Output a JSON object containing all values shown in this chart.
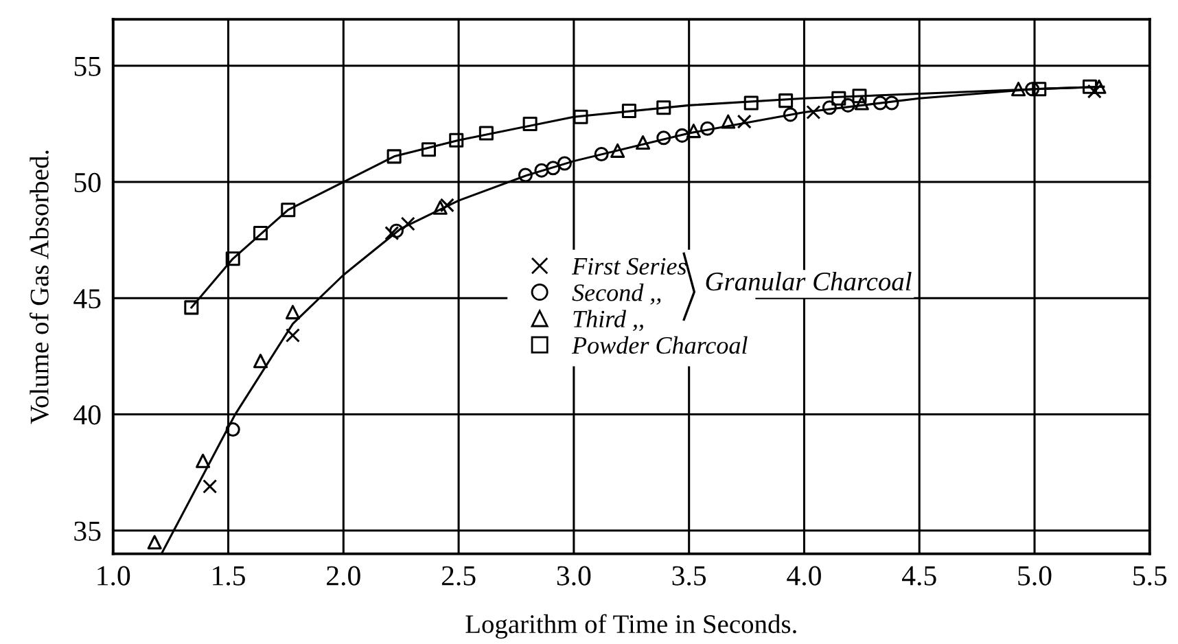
{
  "chart_data": {
    "type": "scatter",
    "xlabel": "Logarithm of Time in Seconds.",
    "ylabel": "Volume of Gas Absorbed.",
    "xlim": [
      1.0,
      5.5
    ],
    "ylim": [
      34,
      57
    ],
    "xticks": [
      {
        "value": 1.0,
        "label": "1.0"
      },
      1.5,
      {
        "value": 2.0,
        "label": "2.0"
      },
      2.5,
      {
        "value": 3.0,
        "label": "3.0"
      },
      3.5,
      {
        "value": 4.0,
        "label": "4.0"
      },
      4.5,
      {
        "value": 5.0,
        "label": "5.0"
      },
      5.5
    ],
    "yticks": [
      35,
      40,
      45,
      50,
      55
    ],
    "grid": true,
    "legend": "center",
    "annotations": [
      "Granular Charcoal"
    ],
    "series": [
      {
        "name": "First Series",
        "color": "#000000",
        "marker": "cross",
        "x": [
          1.42,
          1.78,
          2.21,
          2.28,
          2.45,
          3.74,
          4.04,
          5.26
        ],
        "values": [
          36.9,
          43.4,
          47.8,
          48.2,
          49.0,
          52.6,
          53.0,
          53.9
        ]
      },
      {
        "name": "Second ,,",
        "color": "#000000",
        "marker": "circle",
        "x": [
          1.52,
          2.23,
          2.79,
          2.86,
          2.91,
          2.96,
          3.12,
          3.39,
          3.47,
          3.58,
          3.94,
          4.11,
          4.19,
          4.33,
          4.38,
          4.99
        ],
        "values": [
          39.35,
          47.9,
          50.3,
          50.5,
          50.6,
          50.8,
          51.2,
          51.9,
          52.0,
          52.3,
          52.9,
          53.2,
          53.3,
          53.4,
          53.4,
          54.0
        ]
      },
      {
        "name": "Third ,,",
        "color": "#000000",
        "marker": "triangle",
        "x": [
          1.18,
          1.39,
          1.64,
          1.78,
          2.42,
          3.19,
          3.3,
          3.52,
          3.67,
          4.25,
          4.93,
          5.28
        ],
        "values": [
          34.5,
          38.0,
          42.3,
          44.4,
          48.9,
          51.35,
          51.7,
          52.2,
          52.6,
          53.4,
          54.0,
          54.1
        ]
      },
      {
        "name": "Powder Charcoal",
        "color": "#000000",
        "marker": "square",
        "x": [
          1.34,
          1.52,
          1.64,
          1.76,
          2.22,
          2.37,
          2.49,
          2.62,
          2.81,
          3.03,
          3.24,
          3.39,
          3.77,
          3.92,
          4.15,
          4.24,
          5.02,
          5.24
        ],
        "values": [
          44.6,
          46.7,
          47.8,
          48.8,
          51.1,
          51.4,
          51.8,
          52.1,
          52.5,
          52.8,
          53.06,
          53.2,
          53.4,
          53.5,
          53.6,
          53.7,
          54.0,
          54.1
        ]
      },
      {
        "type": "line",
        "color": "#000000",
        "marker": "none",
        "x": [
          1.34,
          1.52,
          1.76,
          2.0,
          2.22,
          2.5,
          3.0,
          3.5,
          4.0,
          4.5,
          5.0,
          5.3
        ],
        "values": [
          44.6,
          46.7,
          48.8,
          50.0,
          51.1,
          51.8,
          52.8,
          53.3,
          53.6,
          53.8,
          54.0,
          54.1
        ]
      },
      {
        "type": "line",
        "color": "#000000",
        "marker": "none",
        "x": [
          1.21,
          1.53,
          1.78,
          2.0,
          2.25,
          2.5,
          2.8,
          3.0,
          3.5,
          4.0,
          4.5,
          5.0,
          5.3
        ],
        "values": [
          34.0,
          40.0,
          43.9,
          46.0,
          48.0,
          49.2,
          50.3,
          50.9,
          52.1,
          53.0,
          53.6,
          54.0,
          54.1
        ]
      }
    ]
  }
}
